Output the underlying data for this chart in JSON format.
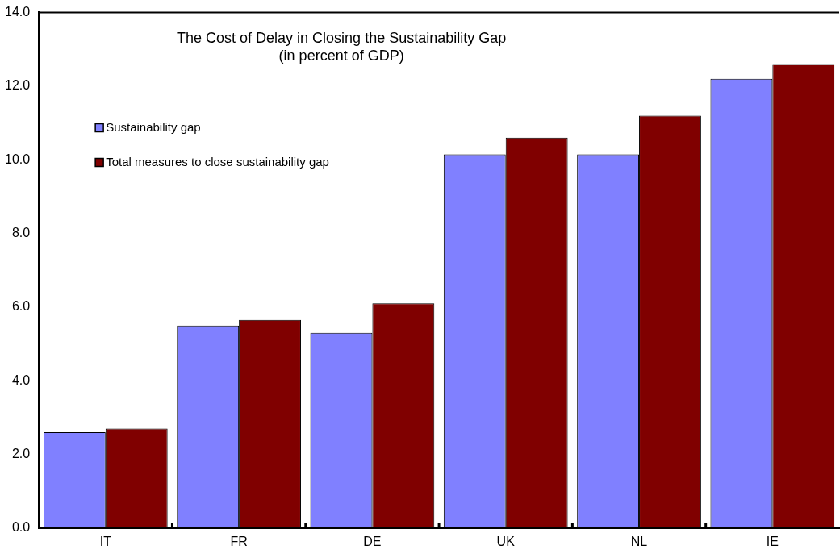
{
  "chart_data": {
    "type": "bar",
    "title": "The Cost of Delay in Closing the Sustainability Gap",
    "subtitle": "(in percent of GDP)",
    "categories": [
      "IT",
      "FR",
      "DE",
      "UK",
      "NL",
      "IE"
    ],
    "series": [
      {
        "name": "Sustainability gap",
        "color": "#8080ff",
        "values": [
          2.6,
          5.5,
          5.3,
          10.15,
          10.15,
          12.2
        ]
      },
      {
        "name": "Total measures to close sustainability gap",
        "color": "#800000",
        "values": [
          2.7,
          5.65,
          6.1,
          10.6,
          11.2,
          12.6
        ]
      }
    ],
    "ylim": [
      0,
      14
    ],
    "yticks": [
      {
        "value": 0,
        "label": "0.0"
      },
      {
        "value": 2,
        "label": "2.0"
      },
      {
        "value": 4,
        "label": "4.0"
      },
      {
        "value": 6,
        "label": "6.0"
      },
      {
        "value": 8,
        "label": "8.0"
      },
      {
        "value": 10,
        "label": "10.0"
      },
      {
        "value": 12,
        "label": "12.0"
      },
      {
        "value": 14,
        "label": "14.0"
      }
    ],
    "grid": false,
    "legend": "top left"
  }
}
